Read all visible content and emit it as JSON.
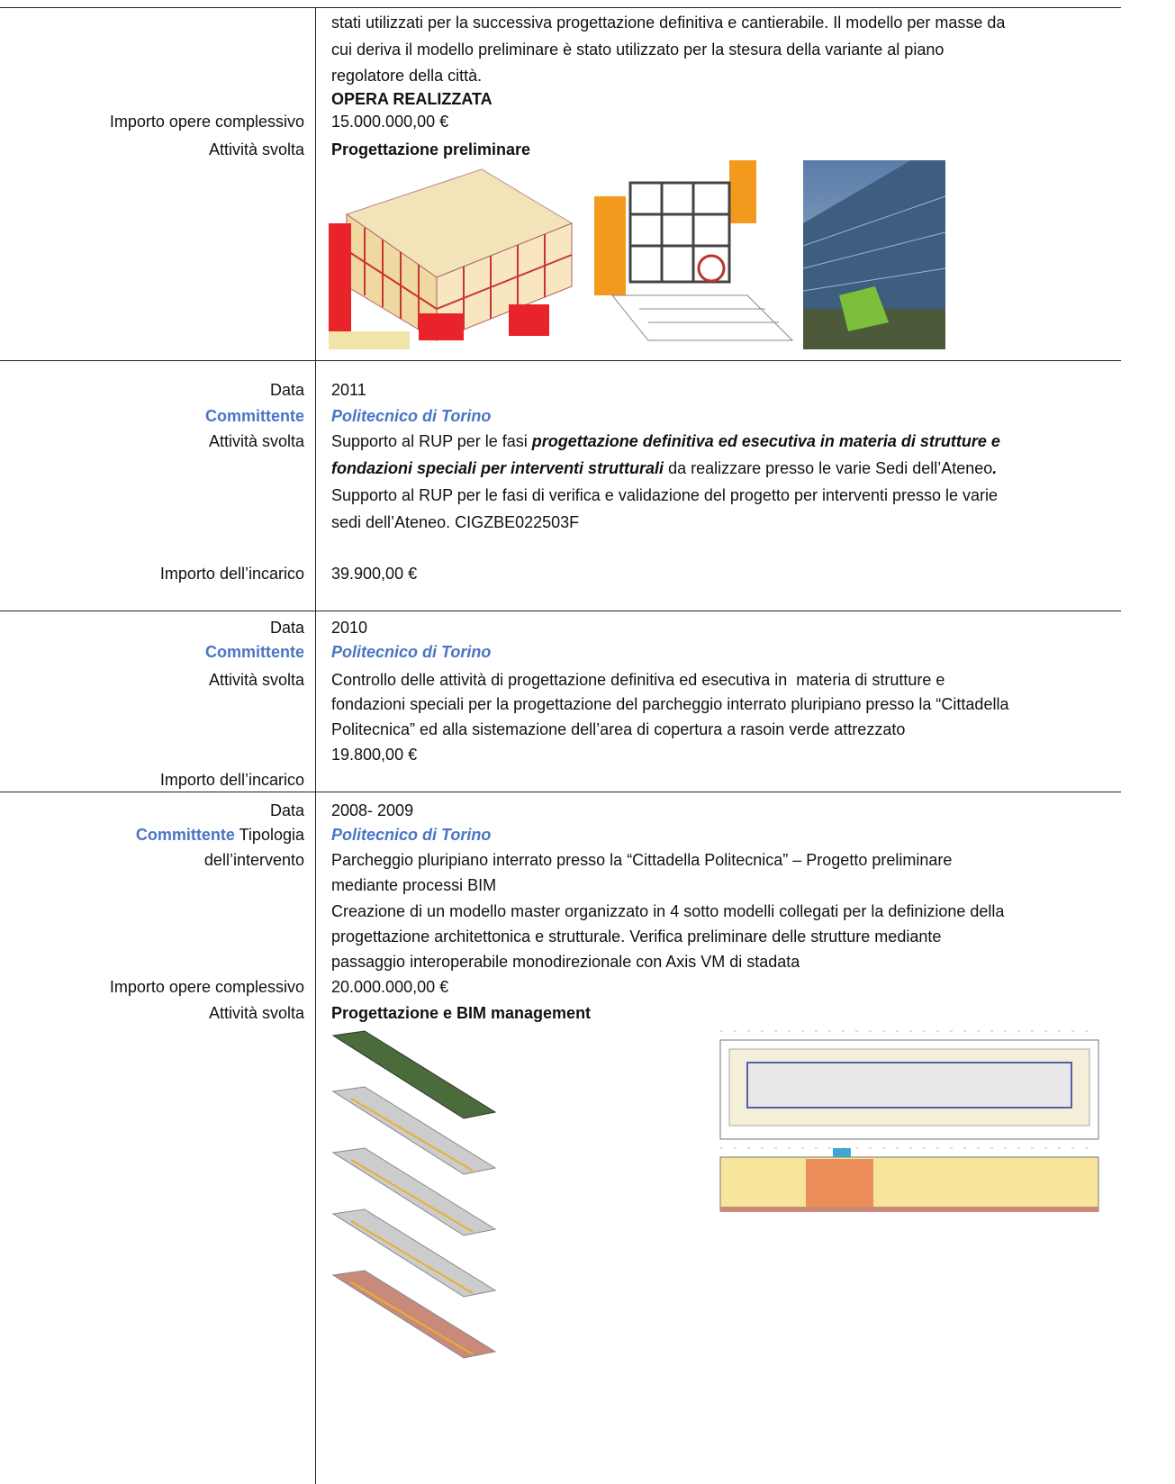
{
  "sections": [
    {
      "labels": [
        {
          "text": "Importo opere complessivo"
        },
        {
          "text": "Attività svolta"
        }
      ],
      "content": [
        "stati utilizzati per la successiva progettazione definitiva e cantierabile. Il modello per masse da",
        "cui deriva il modello preliminare è stato utilizzato per la stesura della variante al piano",
        "regolatore della città.",
        [
          {
            "text": "OPERA REALIZZATA",
            "style": "bold"
          }
        ],
        "15.000.000,00 €",
        [
          {
            "text": "Progettazione preliminare",
            "style": "bold"
          }
        ]
      ]
    },
    {
      "labels": [
        {
          "text": "Data"
        },
        {
          "text": "Committente",
          "style": "blue"
        },
        {
          "text": "Attività svolta"
        },
        {
          "text": "Importo dell’incarico"
        }
      ],
      "content": [
        "2011",
        [
          {
            "text": "Politecnico di Torino",
            "style": "blue-italic"
          }
        ],
        [
          {
            "text": "Supporto al RUP per le fasi ",
            "style": "plain"
          },
          {
            "text": "progettazione definitiva ed esecutiva in materia di strutture e",
            "style": "bold-italic"
          }
        ],
        [
          {
            "text": "fondazioni speciali per interventi strutturali",
            "style": "bold-italic"
          },
          {
            "text": " da realizzare presso le varie Sedi dell’Ateneo",
            "style": "plain"
          },
          {
            "text": ".",
            "style": "bold-italic"
          }
        ],
        "Supporto al RUP per le fasi di verifica e validazione del progetto per interventi presso le varie",
        "sedi dell’Ateneo. CIGZBE022503F",
        "39.900,00 €"
      ]
    },
    {
      "labels": [
        {
          "text": "Data"
        },
        {
          "text": "Committente",
          "style": "blue"
        },
        {
          "text": "Attività svolta"
        },
        {
          "text": "Importo dell’incarico"
        }
      ],
      "content": [
        "2010",
        [
          {
            "text": "Politecnico di Torino",
            "style": "blue-italic"
          }
        ],
        "Controllo delle attività di progettazione definitiva ed esecutiva in  materia di strutture e",
        "fondazioni speciali per la progettazione del parcheggio interrato pluripiano presso la “Cittadella",
        "Politecnica” ed alla sistemazione dell’area di copertura a rasoin verde attrezzato",
        "19.800,00 €"
      ]
    },
    {
      "labels": [
        {
          "text": "Data"
        },
        {
          "text": "Committente",
          "style": "blue"
        },
        {
          "text": "Tipologia"
        },
        {
          "text": "dell’intervento"
        },
        {
          "text": "Importo opere complessivo"
        },
        {
          "text": "Attività svolta"
        }
      ],
      "content": [
        "2008- 2009",
        [
          {
            "text": "Politecnico di Torino",
            "style": "blue-italic"
          }
        ],
        "Parcheggio pluripiano interrato presso la “Cittadella Politecnica” – Progetto preliminare",
        "mediante processi BIM",
        "Creazione di un modello master organizzato in 4 sotto modelli collegati per la definizione della",
        "progettazione architettonica e strutturale. Verifica preliminare delle strutture mediante",
        "passaggio interoperabile monodirezionale con Axis VM di stadata",
        "20.000.000,00 €",
        [
          {
            "text": "Progettazione e BIM management",
            "style": "bold"
          }
        ]
      ]
    }
  ]
}
